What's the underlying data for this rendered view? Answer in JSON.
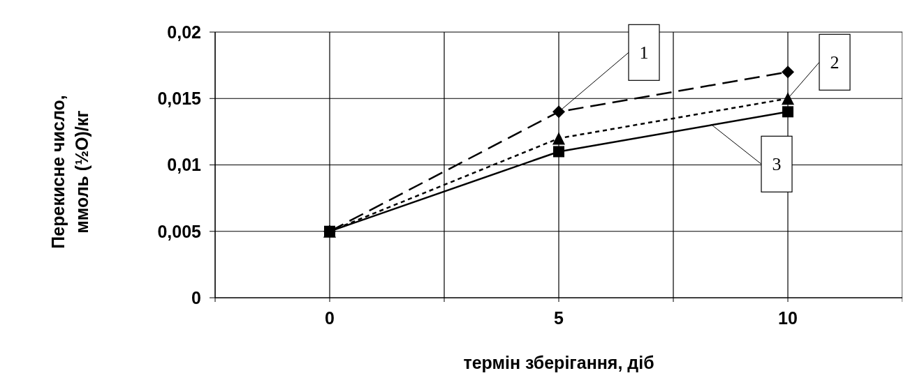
{
  "chart_data": {
    "type": "line",
    "xlabel": "термін зберігання, діб",
    "ylabel": "Перекисне число, ммоль (½O)/кг",
    "x": [
      0,
      5,
      10
    ],
    "xlim": [
      -2.5,
      12.5
    ],
    "xticks": [
      {
        "value": -2.5,
        "label": null
      },
      0,
      {
        "value": 2.5,
        "label": null
      },
      5,
      {
        "value": 7.5,
        "label": null
      },
      10,
      {
        "value": 12.5,
        "label": null
      }
    ],
    "ylim": [
      0,
      0.02
    ],
    "yticks": [
      0,
      {
        "value": 0.005,
        "label": "0,005"
      },
      {
        "value": 0.01,
        "label": "0,01"
      },
      {
        "value": 0.015,
        "label": "0,015"
      },
      {
        "value": 0.02,
        "label": "0,02"
      }
    ],
    "grid": true,
    "legend": false,
    "series": [
      {
        "name": "1",
        "color": "#000000",
        "values": [
          0.005,
          0.014,
          0.017
        ],
        "marker": "diamond",
        "line_style": "dashed"
      },
      {
        "name": "2",
        "color": "#000000",
        "values": [
          0.005,
          0.012,
          0.015
        ],
        "marker": "triangle",
        "line_style": "dotted"
      },
      {
        "name": "3",
        "color": "#000000",
        "values": [
          0.005,
          0.011,
          0.014
        ],
        "marker": "square",
        "line_style": "solid"
      }
    ]
  }
}
